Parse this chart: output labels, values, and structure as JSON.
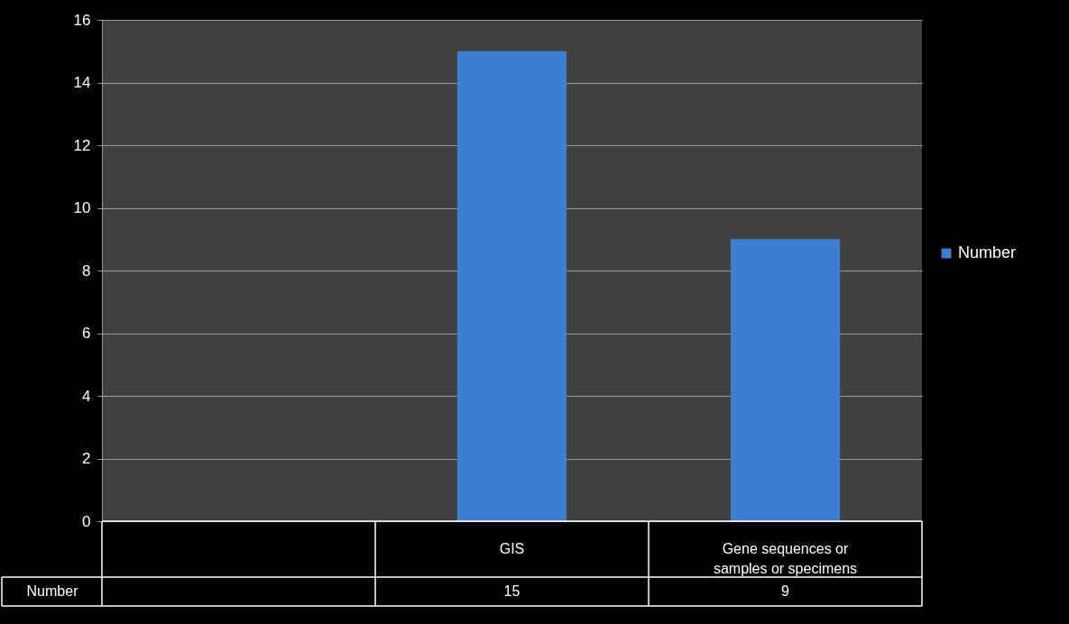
{
  "chart_data": {
    "type": "bar",
    "categories": [
      null,
      "GIS",
      "Gene sequences or samples or specimens"
    ],
    "series": [
      {
        "name": "Number",
        "color": "#3f7fd2",
        "values": [
          null,
          15,
          9
        ]
      }
    ],
    "ylim": [
      0,
      16
    ],
    "yticks": [
      0,
      2,
      4,
      6,
      8,
      10,
      12,
      14,
      16
    ],
    "grid": "y",
    "legend": "right",
    "data_labels": true
  }
}
